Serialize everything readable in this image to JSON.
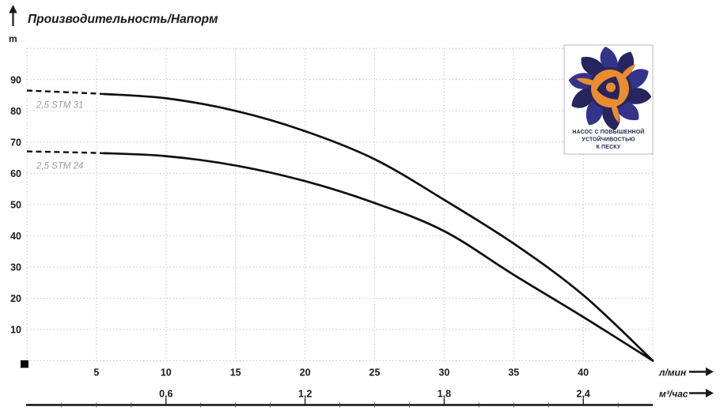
{
  "header": {
    "title": "Производительность/Напорм"
  },
  "axes": {
    "y_unit": "m",
    "x1_unit": "л/мин",
    "x2_unit": "м³/час",
    "y_ticks": [
      90,
      80,
      70,
      60,
      50,
      40,
      30,
      20,
      10
    ],
    "x1_ticks": [
      5,
      10,
      15,
      20,
      25,
      30,
      35,
      40
    ],
    "x2_ticks": [
      {
        "label": "0,6",
        "q": 10
      },
      {
        "label": "1,2",
        "q": 20
      },
      {
        "label": "1,8",
        "q": 30
      },
      {
        "label": "2,4",
        "q": 40
      }
    ]
  },
  "chart_data": {
    "type": "line",
    "title": "Производительность/Напорм",
    "ylabel": "m",
    "xlabel_primary": "л/мин",
    "xlabel_secondary": "м³/час",
    "xlim": [
      0,
      45
    ],
    "ylim": [
      0,
      100
    ],
    "grid": true,
    "x": [
      0,
      5,
      10,
      15,
      20,
      25,
      30,
      35,
      40,
      45
    ],
    "series": [
      {
        "name": "2,5 STM 31",
        "values": [
          86.5,
          85.5,
          84,
          80,
          73.5,
          64.5,
          51.5,
          37.5,
          21,
          0
        ],
        "dashed_until_x": 5.5,
        "color": "#0f0f0f"
      },
      {
        "name": "2,5 STM 24",
        "values": [
          67,
          66.5,
          65.5,
          62.5,
          57.5,
          50.5,
          41.5,
          27.5,
          14,
          0
        ],
        "dashed_until_x": 5.5,
        "color": "#0f0f0f"
      }
    ]
  },
  "logo": {
    "text_lines": [
      "НАСОС С ПОВЫШЕННОЙ",
      "УСТОЙЧИВОСТЬЮ",
      "К ПЕСКУ"
    ],
    "colors": {
      "navy": "#26255e",
      "navy_light": "#34338a",
      "orange": "#ec8c30"
    }
  },
  "colors": {
    "curve": "#0f0f0f",
    "grid": "#c6c6c6",
    "text": "#1a1a1a",
    "curve_label": "#9b9b9b"
  }
}
